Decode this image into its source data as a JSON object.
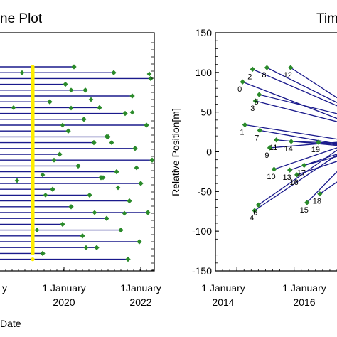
{
  "chart_data": [
    {
      "type": "line",
      "title": "ne Plot",
      "xlabel": "Date",
      "ylabel": "",
      "x_ticks": [
        {
          "line1": "y",
          "line2": ""
        },
        {
          "line1": "1 January",
          "line2": "2020"
        },
        {
          "line1": "1January",
          "line2": "2022"
        }
      ],
      "highlight_color": "#ffee00",
      "line_color": "#1a1a8c",
      "point_color": "#2a8a2a",
      "baseline_points": [
        {
          "x": "2019-03",
          "y": 1
        },
        {
          "x": "2019-03",
          "y": 2
        },
        {
          "x": "2019-03",
          "y": 3
        },
        {
          "x": "2019-03",
          "y": 4
        },
        {
          "x": "2019-03",
          "y": 5
        },
        {
          "x": "2019-03",
          "y": 6
        },
        {
          "x": "2019-03",
          "y": 7
        },
        {
          "x": "2019-03",
          "y": 8
        },
        {
          "x": "2019-03",
          "y": 9
        },
        {
          "x": "2019-03",
          "y": 10
        }
      ],
      "segments_note": "",
      "segments": [
        {
          "x2": "2019-03",
          "y": 1,
          "y2": 1
        },
        {
          "x2": "2020-09",
          "y": 2,
          "y2": 2
        },
        {
          "x2": "2022-06",
          "y": 3,
          "y2": 3
        },
        {
          "x2": "2021-06",
          "y": 4,
          "y2": 4
        },
        {
          "x2": "2020-04",
          "y": 5,
          "y2": 5
        },
        {
          "x2": "2022-03",
          "y": 6,
          "y2": 6
        },
        {
          "x2": "2021-09",
          "y": 7,
          "y2": 7
        },
        {
          "x2": "2020-06",
          "y": 8,
          "y2": 8
        },
        {
          "x2": "2021-03",
          "y": 9,
          "y2": 9
        },
        {
          "x2": "2022-01",
          "y": 10,
          "y2": 10
        }
      ]
    },
    {
      "type": "line",
      "title": "Tim",
      "xlabel": "",
      "ylabel": "Relative Position[m]",
      "ylim": [
        -150,
        150
      ],
      "yticks": [
        150,
        100,
        50,
        0,
        -50,
        -100,
        -150
      ],
      "x_ticks": [
        {
          "line1": "1 January",
          "line2": "2014"
        },
        {
          "line1": "1 January",
          "line2": "2016"
        }
      ],
      "xlim": [
        2013.25,
        2017.5
      ],
      "line_color": "#1a1a8c",
      "point_color": "#2a8a2a",
      "series": [
        {
          "label": "0",
          "x": [
            2014.2,
            2017.5
          ],
          "y": [
            88,
            42
          ]
        },
        {
          "label": "1",
          "x": [
            2014.28,
            2017.5
          ],
          "y": [
            34,
            16
          ]
        },
        {
          "label": "2",
          "x": [
            2014.55,
            2017.5
          ],
          "y": [
            104,
            58
          ]
        },
        {
          "label": "3",
          "x": [
            2014.65,
            2017.5
          ],
          "y": [
            64,
            38
          ]
        },
        {
          "label": "4",
          "x": [
            2014.62,
            2017.5
          ],
          "y": [
            -74,
            -4
          ]
        },
        {
          "label": "5",
          "x": [
            2014.78,
            2017.5
          ],
          "y": [
            72,
            48
          ]
        },
        {
          "label": "6",
          "x": [
            2014.75,
            2017.5
          ],
          "y": [
            -67,
            2
          ]
        },
        {
          "label": "7",
          "x": [
            2014.8,
            2017.5
          ],
          "y": [
            27,
            10
          ]
        },
        {
          "label": "8",
          "x": [
            2015.05,
            2017.5
          ],
          "y": [
            106,
            62
          ]
        },
        {
          "label": "9",
          "x": [
            2015.15,
            2017.5
          ],
          "y": [
            5,
            12
          ]
        },
        {
          "label": "10",
          "x": [
            2015.3,
            2017.5
          ],
          "y": [
            -22,
            5
          ]
        },
        {
          "label": "11",
          "x": [
            2015.38,
            2017.5
          ],
          "y": [
            15,
            8
          ]
        },
        {
          "label": "12",
          "x": [
            2015.88,
            2017.5
          ],
          "y": [
            106,
            68
          ]
        },
        {
          "label": "13",
          "x": [
            2015.85,
            2017.5
          ],
          "y": [
            -23,
            -3
          ]
        },
        {
          "label": "14",
          "x": [
            2015.9,
            2017.5
          ],
          "y": [
            13,
            11
          ]
        },
        {
          "label": "15",
          "x": [
            2016.45,
            2017.5
          ],
          "y": [
            -64,
            -25
          ]
        },
        {
          "label": "16",
          "x": [
            2016.1,
            2017.5
          ],
          "y": [
            -29,
            -12
          ]
        },
        {
          "label": "17",
          "x": [
            2016.35,
            2017.5
          ],
          "y": [
            -17,
            -6
          ]
        },
        {
          "label": "18",
          "x": [
            2016.9,
            2017.5
          ],
          "y": [
            -53,
            -38
          ]
        },
        {
          "label": "19",
          "x": [
            2016.85,
            2017.5
          ],
          "y": [
            12,
            9
          ]
        }
      ]
    }
  ]
}
